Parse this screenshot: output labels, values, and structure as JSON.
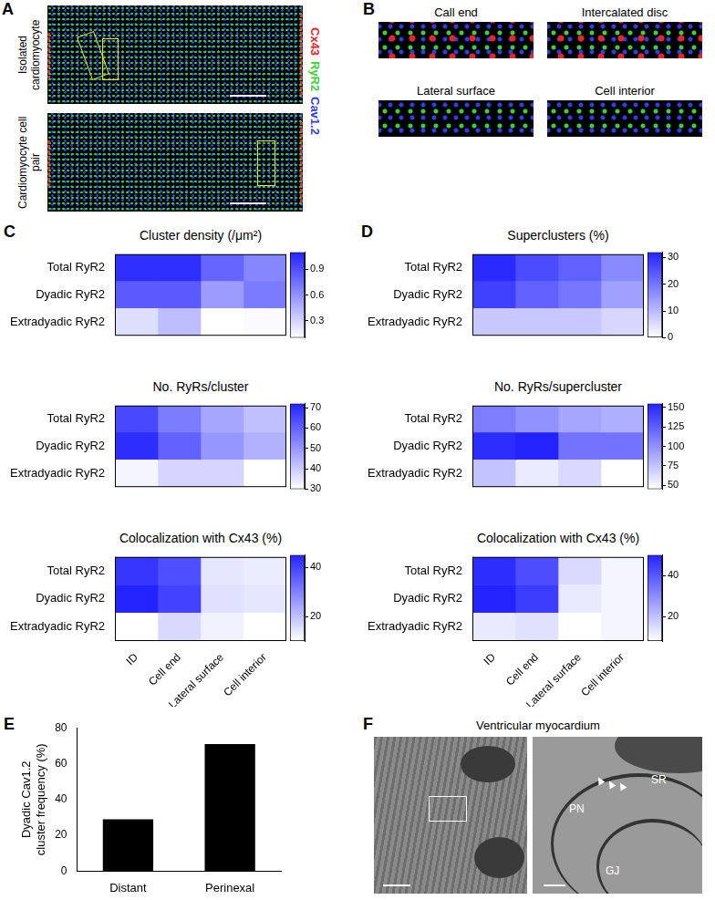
{
  "chart_data": [
    {
      "type": "heatmap",
      "panel": "C",
      "title": "Cluster density (/μm²)",
      "x": [
        "ID",
        "Cell end",
        "Lateral surface",
        "Cell interior"
      ],
      "y": [
        "Total RyR2",
        "Dyadic RyR2",
        "Extradyadic RyR2"
      ],
      "cells": [
        [
          1.05,
          1.05,
          0.8,
          0.65
        ],
        [
          0.85,
          0.85,
          0.55,
          0.7
        ],
        [
          0.25,
          0.4,
          0.1,
          0.12
        ]
      ],
      "color": "#2323ff",
      "colorbar_range": [
        0.1,
        1.1
      ],
      "colorbar_ticks": [
        0.3,
        0.6,
        0.9
      ],
      "tick_labels": "y"
    },
    {
      "type": "heatmap",
      "title": "No. RyRs/cluster",
      "x": [
        "ID",
        "Cell end",
        "Lateral surface",
        "Cell interior"
      ],
      "y": [
        "Total RyR2",
        "Dyadic RyR2",
        "Extradyadic RyR2"
      ],
      "cells": [
        [
          65,
          55,
          47,
          42
        ],
        [
          70,
          60,
          50,
          45
        ],
        [
          32,
          38,
          38,
          30
        ]
      ],
      "color": "#2323ff",
      "colorbar_range": [
        30,
        72
      ],
      "colorbar_ticks": [
        30,
        40,
        50,
        60,
        70
      ],
      "tick_labels": "y"
    },
    {
      "type": "heatmap",
      "title": "Colocalization with Cx43 (%)",
      "x": [
        "ID",
        "Cell end",
        "Lateral surface",
        "Cell interior"
      ],
      "y": [
        "Total RyR2",
        "Dyadic RyR2",
        "Extradyadic RyR2"
      ],
      "cells": [
        [
          42,
          38,
          14,
          13
        ],
        [
          45,
          40,
          15,
          14
        ],
        [
          10,
          16,
          12,
          10
        ]
      ],
      "color": "#2323ff",
      "colorbar_range": [
        10,
        45
      ],
      "colorbar_ticks": [
        20,
        40
      ]
    },
    {
      "type": "heatmap",
      "panel": "D",
      "title": "Superclusters (%)",
      "x": [
        "ID",
        "Cell end",
        "Lateral surface",
        "Cell interior"
      ],
      "y": [
        "Total RyR2",
        "Dyadic RyR2",
        "Extradyadic RyR2"
      ],
      "cells": [
        [
          31,
          26,
          23,
          17
        ],
        [
          28,
          23,
          20,
          14
        ],
        [
          8,
          8,
          8,
          6
        ]
      ],
      "color": "#2323ff",
      "colorbar_range": [
        0,
        32
      ],
      "colorbar_ticks": [
        0,
        10,
        20,
        30
      ],
      "tick_labels": "y"
    },
    {
      "type": "heatmap",
      "title": "No. RyRs/supercluster",
      "x": [
        "ID",
        "Cell end",
        "Lateral surface",
        "Cell interior"
      ],
      "y": [
        "Total RyR2",
        "Dyadic RyR2",
        "Extradyadic RyR2"
      ],
      "cells": [
        [
          110,
          100,
          90,
          85
        ],
        [
          150,
          155,
          115,
          115
        ],
        [
          75,
          55,
          65,
          45
        ]
      ],
      "color": "#2323ff",
      "colorbar_range": [
        45,
        155
      ],
      "colorbar_ticks": [
        50,
        75,
        100,
        125,
        150
      ],
      "tick_labels": "y"
    },
    {
      "type": "heatmap",
      "title": "Colocalization with Cx43 (%)",
      "x": [
        "ID",
        "Cell end",
        "Lateral surface",
        "Cell interior"
      ],
      "y": [
        "Total RyR2",
        "Dyadic RyR2",
        "Extradyadic RyR2"
      ],
      "cells": [
        [
          48,
          42,
          15,
          10
        ],
        [
          50,
          45,
          12,
          10
        ],
        [
          12,
          14,
          8,
          10
        ]
      ],
      "color": "#2323ff",
      "colorbar_range": [
        8,
        50
      ],
      "colorbar_ticks": [
        20,
        40
      ]
    },
    {
      "type": "bar",
      "panel": "E",
      "y_label": "Dyadic Cav1.2 cluster frequency (%)",
      "categories": [
        "Distant",
        "Perinexal"
      ],
      "values": [
        29,
        71
      ],
      "color": "#000000",
      "ylim": [
        0,
        80
      ],
      "yticks": [
        0,
        20,
        40,
        60,
        80
      ],
      "grid": false
    }
  ],
  "image_panels": [
    {
      "panel": "A",
      "images": [
        "Isolated cardiomyocyte",
        "Cardiomyocyte cell pair"
      ],
      "channels": [
        {
          "name": "Cx43",
          "color": "#e8262a"
        },
        {
          "name": "RyR2",
          "color": "#39d23a"
        },
        {
          "name": "Cav1.2",
          "color": "#2f3cf0"
        }
      ]
    },
    {
      "panel": "B",
      "images": [
        "Call end",
        "Intercalated disc",
        "Lateral surface",
        "Cell interior"
      ]
    },
    {
      "panel": "F",
      "title": "Ventricular myocardium",
      "annotations": [
        "SR",
        "PN",
        "GJ"
      ]
    }
  ]
}
